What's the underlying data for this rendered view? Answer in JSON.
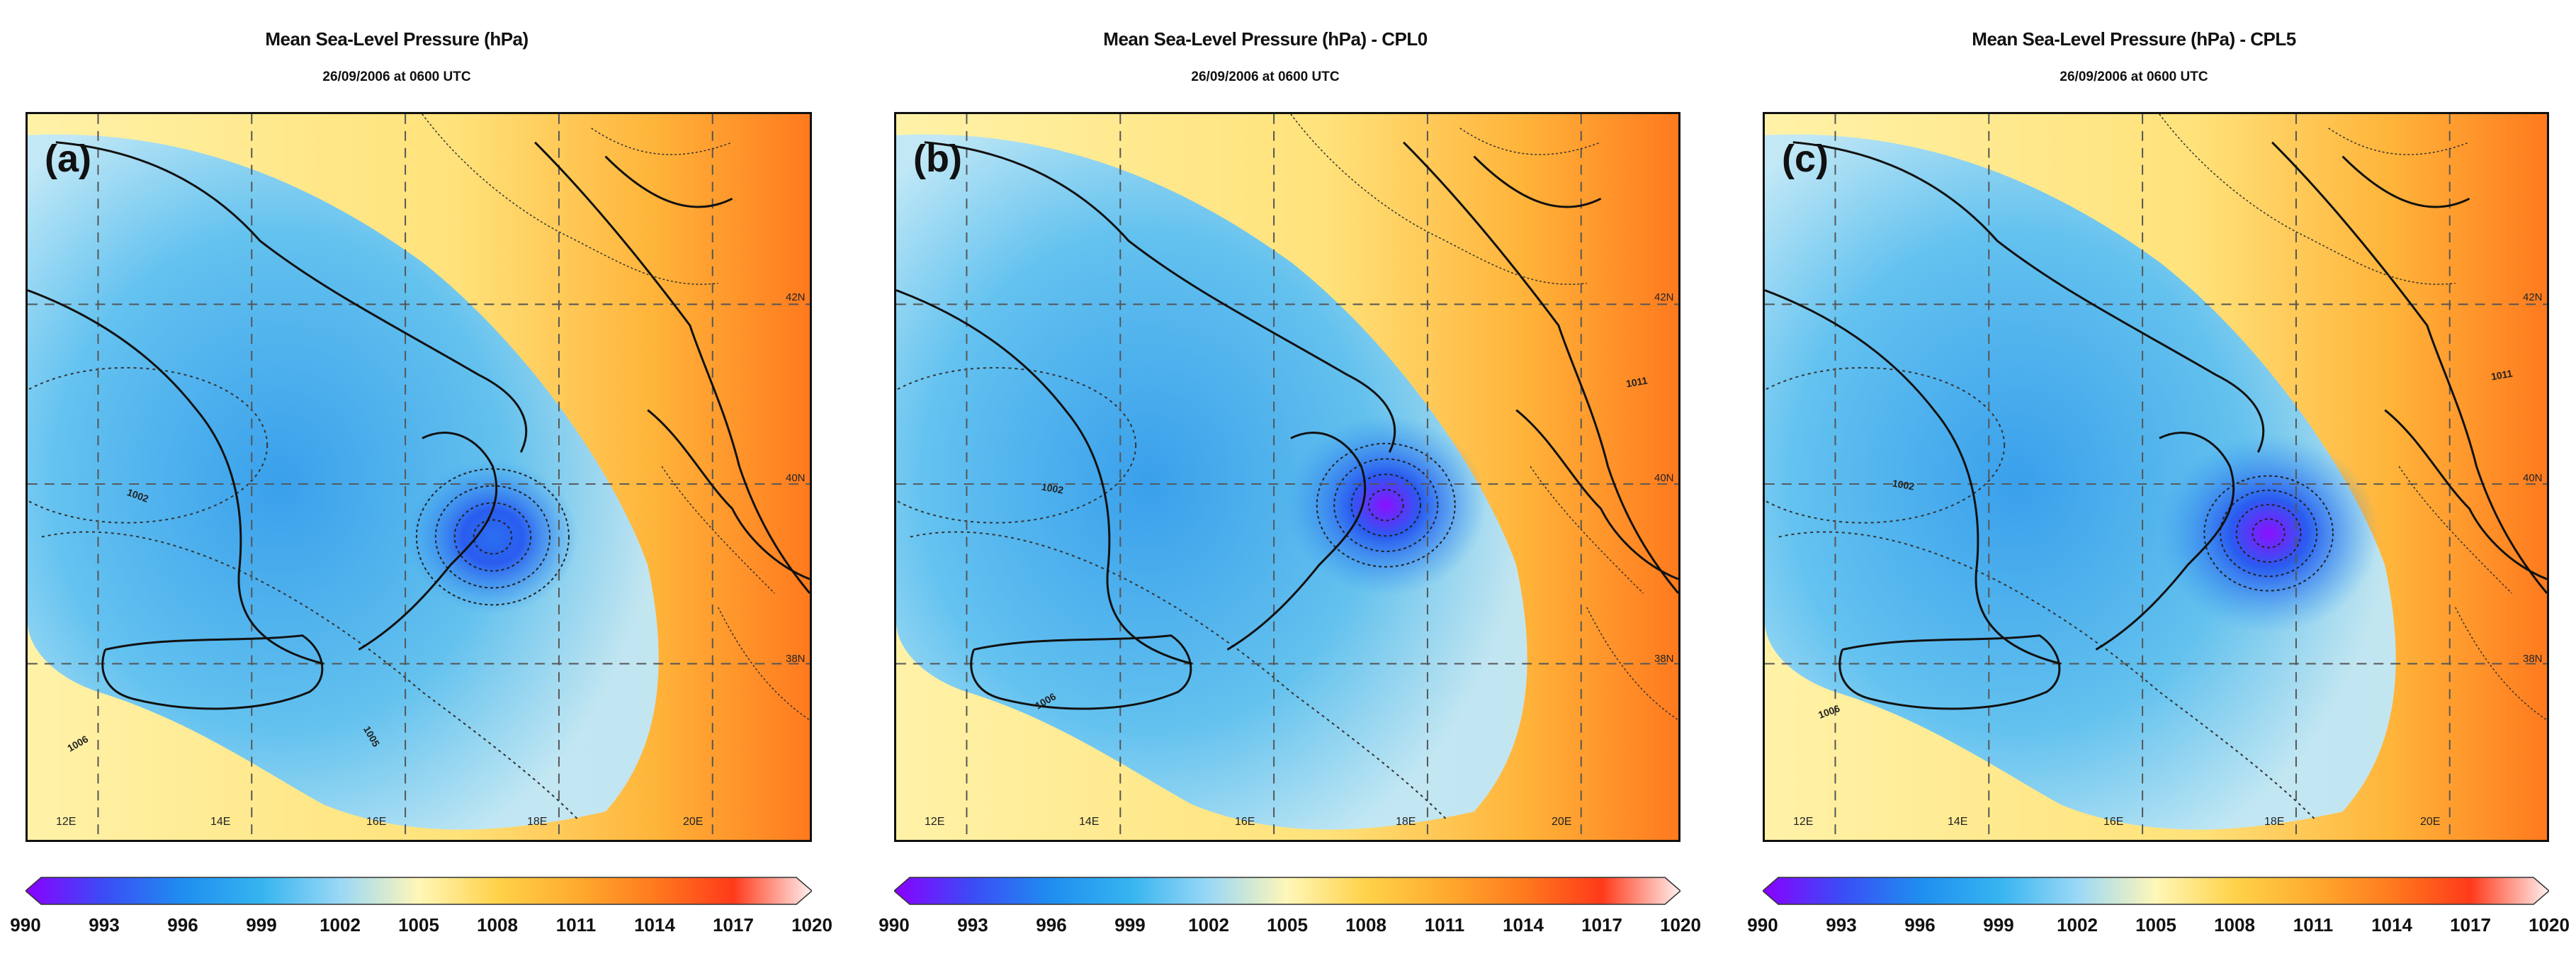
{
  "colorbar": {
    "ticks": [
      "990",
      "993",
      "996",
      "999",
      "1002",
      "1005",
      "1008",
      "1011",
      "1014",
      "1017",
      "1020"
    ],
    "stops": [
      "#8a00ff",
      "#3b4cf6",
      "#1f8ef0",
      "#35b4f0",
      "#9ad8f6",
      "#fff7b8",
      "#ffd24a",
      "#ffab2e",
      "#ff7a1e",
      "#ff3a1a",
      "#fff0f0"
    ]
  },
  "longitude_labels": [
    "12E",
    "14E",
    "16E",
    "18E",
    "20E"
  ],
  "latitude_labels": [
    "42N",
    "40N",
    "38N"
  ],
  "panels": [
    {
      "letter": "(a)",
      "title": "Mean Sea-Level Pressure (hPa)",
      "subtitle": "26/09/2006 at 0600 UTC",
      "isobar_labels": [
        "1002",
        "1006",
        "1005"
      ],
      "low_intensity": 0.45
    },
    {
      "letter": "(b)",
      "title": "Mean Sea-Level Pressure (hPa) - CPL0",
      "subtitle": "26/09/2006 at 0600 UTC",
      "isobar_labels": [
        "1002",
        "1006",
        "1011"
      ],
      "low_intensity": 0.75
    },
    {
      "letter": "(c)",
      "title": "Mean Sea-Level Pressure (hPa) - CPL5",
      "subtitle": "26/09/2006 at 0600 UTC",
      "isobar_labels": [
        "1002",
        "1006",
        "1011"
      ],
      "low_intensity": 0.95
    }
  ]
}
